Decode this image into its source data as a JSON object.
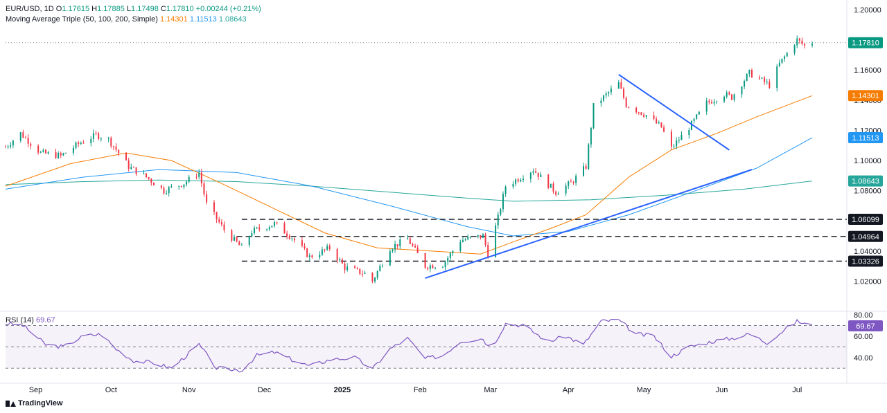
{
  "header": {
    "symbol": "EUR/USD, 1D",
    "o_label": "O",
    "open": "1.17615",
    "h_label": "H",
    "high": "1.17885",
    "l_label": "L",
    "low": "1.17498",
    "c_label": "C",
    "close": "1.17810",
    "change": "+0.00244 (+0.21%)",
    "ma_label": "Moving Average Triple (50, 100, 200, Simple)",
    "ma50": "1.14301",
    "ma100": "1.11513",
    "ma200": "1.08643"
  },
  "rsi_header": {
    "label": "RSI (14)",
    "value": "69.67"
  },
  "brand": {
    "name": "TradingView"
  },
  "colors": {
    "up": "#089981",
    "down": "#f23645",
    "ma50": "#f57c00",
    "ma100": "#2196f3",
    "ma200": "#26a69a",
    "rsi": "#7e57c2",
    "trend": "#2962ff",
    "label_dark": "#131722",
    "label_last": "#089981"
  },
  "chart_data": {
    "type": "candlestick",
    "main_ylim": [
      1.0,
      1.2
    ],
    "y_ticks": [
      "1.20000",
      "1.16000",
      "1.14000",
      "1.12000",
      "1.10000",
      "1.08000",
      "1.04000",
      "1.02000"
    ],
    "x_ticks": [
      {
        "label": "Sep",
        "date": "2024-09-01",
        "bold": false
      },
      {
        "label": "Oct",
        "date": "2024-10-01",
        "bold": false
      },
      {
        "label": "Nov",
        "date": "2024-11-01",
        "bold": false
      },
      {
        "label": "Dec",
        "date": "2024-12-01",
        "bold": false
      },
      {
        "label": "2025",
        "date": "2025-01-01",
        "bold": true
      },
      {
        "label": "Feb",
        "date": "2025-02-01",
        "bold": false
      },
      {
        "label": "Mar",
        "date": "2025-03-01",
        "bold": false
      },
      {
        "label": "Apr",
        "date": "2025-04-01",
        "bold": false
      },
      {
        "label": "May",
        "date": "2025-05-01",
        "bold": false
      },
      {
        "label": "Jun",
        "date": "2025-06-01",
        "bold": false
      },
      {
        "label": "Jul",
        "date": "2025-07-01",
        "bold": false
      }
    ],
    "date_range": [
      "2024-08-20",
      "2025-07-07"
    ],
    "close_path": [
      [
        "2024-08-20",
        1.109
      ],
      [
        "2024-08-26",
        1.118
      ],
      [
        "2024-09-03",
        1.105
      ],
      [
        "2024-09-11",
        1.103
      ],
      [
        "2024-09-18",
        1.111
      ],
      [
        "2024-09-25",
        1.117
      ],
      [
        "2024-09-30",
        1.114
      ],
      [
        "2024-10-08",
        1.096
      ],
      [
        "2024-10-15",
        1.089
      ],
      [
        "2024-10-22",
        1.08
      ],
      [
        "2024-10-30",
        1.085
      ],
      [
        "2024-11-05",
        1.092
      ],
      [
        "2024-11-08",
        1.071
      ],
      [
        "2024-11-15",
        1.054
      ],
      [
        "2024-11-22",
        1.042
      ],
      [
        "2024-11-26",
        1.053
      ],
      [
        "2024-12-05",
        1.058
      ],
      [
        "2024-12-12",
        1.049
      ],
      [
        "2024-12-19",
        1.036
      ],
      [
        "2024-12-27",
        1.042
      ],
      [
        "2025-01-02",
        1.029
      ],
      [
        "2025-01-10",
        1.025
      ],
      [
        "2025-01-13",
        1.02
      ],
      [
        "2025-01-20",
        1.042
      ],
      [
        "2025-01-27",
        1.048
      ],
      [
        "2025-02-03",
        1.03
      ],
      [
        "2025-02-10",
        1.031
      ],
      [
        "2025-02-17",
        1.047
      ],
      [
        "2025-02-26",
        1.05
      ],
      [
        "2025-02-28",
        1.038
      ],
      [
        "2025-03-04",
        1.062
      ],
      [
        "2025-03-07",
        1.083
      ],
      [
        "2025-03-18",
        1.094
      ],
      [
        "2025-03-27",
        1.079
      ],
      [
        "2025-04-02",
        1.085
      ],
      [
        "2025-04-08",
        1.096
      ],
      [
        "2025-04-11",
        1.136
      ],
      [
        "2025-04-21",
        1.151
      ],
      [
        "2025-04-24",
        1.137
      ],
      [
        "2025-05-02",
        1.13
      ],
      [
        "2025-05-08",
        1.122
      ],
      [
        "2025-05-12",
        1.108
      ],
      [
        "2025-05-20",
        1.124
      ],
      [
        "2025-05-26",
        1.138
      ],
      [
        "2025-06-02",
        1.144
      ],
      [
        "2025-06-05",
        1.142
      ],
      [
        "2025-06-12",
        1.158
      ],
      [
        "2025-06-20",
        1.15
      ],
      [
        "2025-06-24",
        1.164
      ],
      [
        "2025-06-30",
        1.178
      ],
      [
        "2025-07-01",
        1.18
      ],
      [
        "2025-07-04",
        1.176
      ],
      [
        "2025-07-07",
        1.1781
      ]
    ],
    "ma50_path": [
      [
        "2024-08-20",
        1.083
      ],
      [
        "2024-09-15",
        1.098
      ],
      [
        "2024-10-07",
        1.105
      ],
      [
        "2024-10-25",
        1.1
      ],
      [
        "2024-11-15",
        1.084
      ],
      [
        "2024-12-05",
        1.068
      ],
      [
        "2024-12-25",
        1.052
      ],
      [
        "2025-01-15",
        1.042
      ],
      [
        "2025-02-05",
        1.04
      ],
      [
        "2025-02-25",
        1.038
      ],
      [
        "2025-03-10",
        1.046
      ],
      [
        "2025-03-25",
        1.055
      ],
      [
        "2025-04-08",
        1.064
      ],
      [
        "2025-04-25",
        1.089
      ],
      [
        "2025-05-12",
        1.107
      ],
      [
        "2025-05-30",
        1.118
      ],
      [
        "2025-06-15",
        1.129
      ],
      [
        "2025-07-07",
        1.143
      ]
    ],
    "ma100_path": [
      [
        "2024-08-20",
        1.081
      ],
      [
        "2024-09-20",
        1.089
      ],
      [
        "2024-10-20",
        1.094
      ],
      [
        "2024-11-20",
        1.092
      ],
      [
        "2024-12-20",
        1.083
      ],
      [
        "2025-01-20",
        1.07
      ],
      [
        "2025-02-20",
        1.056
      ],
      [
        "2025-03-10",
        1.05
      ],
      [
        "2025-04-01",
        1.053
      ],
      [
        "2025-04-25",
        1.064
      ],
      [
        "2025-05-20",
        1.079
      ],
      [
        "2025-06-15",
        1.095
      ],
      [
        "2025-07-07",
        1.1151
      ]
    ],
    "ma200_path": [
      [
        "2024-08-20",
        1.084
      ],
      [
        "2024-09-20",
        1.086
      ],
      [
        "2024-10-20",
        1.087
      ],
      [
        "2024-11-20",
        1.086
      ],
      [
        "2024-12-20",
        1.083
      ],
      [
        "2025-01-20",
        1.079
      ],
      [
        "2025-02-20",
        1.075
      ],
      [
        "2025-03-10",
        1.073
      ],
      [
        "2025-04-10",
        1.074
      ],
      [
        "2025-05-10",
        1.077
      ],
      [
        "2025-06-10",
        1.081
      ],
      [
        "2025-07-07",
        1.0864
      ]
    ],
    "support_levels": [
      {
        "value": 1.06099,
        "label": "1.06099",
        "from": "2024-11-22"
      },
      {
        "value": 1.04964,
        "label": "1.04964",
        "from": "2024-11-20"
      },
      {
        "value": 1.03326,
        "label": "1.03326",
        "from": "2024-11-22"
      }
    ],
    "trendlines": [
      {
        "from": [
          "2025-02-03",
          1.022
        ],
        "to": [
          "2025-06-13",
          1.094
        ]
      },
      {
        "from": [
          "2025-04-21",
          1.157
        ],
        "to": [
          "2025-06-04",
          1.107
        ]
      }
    ],
    "price_labels": [
      {
        "value": 1.1781,
        "text": "1.17810",
        "kind": "last"
      },
      {
        "value": 1.14301,
        "text": "1.14301",
        "kind": "ma50"
      },
      {
        "value": 1.11513,
        "text": "1.11513",
        "kind": "ma100"
      },
      {
        "value": 1.08643,
        "text": "1.08643",
        "kind": "ma200"
      },
      {
        "value": 1.06099,
        "text": "1.06099",
        "kind": "level"
      },
      {
        "value": 1.04964,
        "text": "1.04964",
        "kind": "level"
      },
      {
        "value": 1.03326,
        "text": "1.03326",
        "kind": "level"
      }
    ],
    "rsi": {
      "ylim": [
        25,
        82
      ],
      "y_ticks": [
        "80.00",
        "60.00",
        "40.00"
      ],
      "upper": 70,
      "middle": 50,
      "lower": 30,
      "last_label": "69.67",
      "path": [
        [
          "2024-08-20",
          72
        ],
        [
          "2024-08-27",
          70
        ],
        [
          "2024-09-05",
          52
        ],
        [
          "2024-09-12",
          50
        ],
        [
          "2024-09-20",
          60
        ],
        [
          "2024-09-27",
          62
        ],
        [
          "2024-10-03",
          48
        ],
        [
          "2024-10-10",
          37
        ],
        [
          "2024-10-18",
          35
        ],
        [
          "2024-10-25",
          30
        ],
        [
          "2024-11-05",
          52
        ],
        [
          "2024-11-12",
          30
        ],
        [
          "2024-11-22",
          28
        ],
        [
          "2024-11-28",
          42
        ],
        [
          "2024-12-05",
          45
        ],
        [
          "2024-12-12",
          38
        ],
        [
          "2024-12-19",
          32
        ],
        [
          "2024-12-27",
          38
        ],
        [
          "2025-01-06",
          40
        ],
        [
          "2025-01-13",
          29
        ],
        [
          "2025-01-20",
          48
        ],
        [
          "2025-01-27",
          58
        ],
        [
          "2025-02-03",
          39
        ],
        [
          "2025-02-10",
          42
        ],
        [
          "2025-02-17",
          55
        ],
        [
          "2025-02-26",
          58
        ],
        [
          "2025-03-01",
          47
        ],
        [
          "2025-03-07",
          72
        ],
        [
          "2025-03-14",
          70
        ],
        [
          "2025-03-24",
          55
        ],
        [
          "2025-03-31",
          60
        ],
        [
          "2025-04-07",
          52
        ],
        [
          "2025-04-14",
          74
        ],
        [
          "2025-04-21",
          75
        ],
        [
          "2025-04-28",
          62
        ],
        [
          "2025-05-05",
          60
        ],
        [
          "2025-05-12",
          41
        ],
        [
          "2025-05-19",
          50
        ],
        [
          "2025-05-28",
          55
        ],
        [
          "2025-06-05",
          58
        ],
        [
          "2025-06-12",
          62
        ],
        [
          "2025-06-19",
          54
        ],
        [
          "2025-06-26",
          66
        ],
        [
          "2025-07-01",
          74
        ],
        [
          "2025-07-07",
          69.67
        ]
      ]
    }
  }
}
